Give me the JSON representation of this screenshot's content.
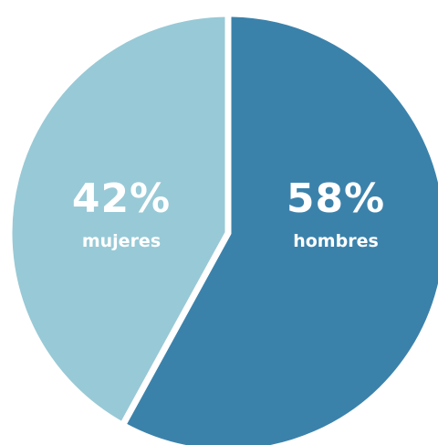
{
  "chart_data": {
    "type": "pie",
    "slices": [
      {
        "label": "hombres",
        "value": 58,
        "display": "58%",
        "color": "#3b82ab"
      },
      {
        "label": "mujeres",
        "value": 42,
        "display": "42%",
        "color": "#98c9d6"
      }
    ]
  }
}
